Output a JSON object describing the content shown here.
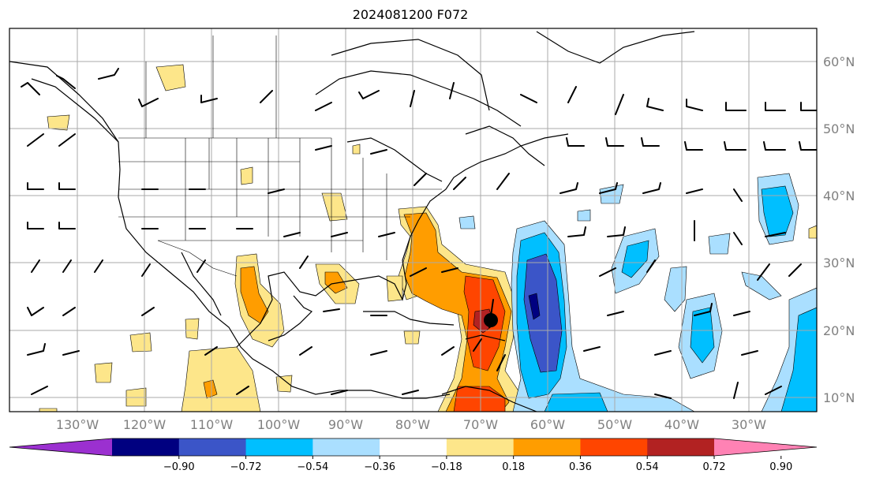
{
  "title": "2024081200 F072",
  "lat_labels": [
    "60°N",
    "50°N",
    "40°N",
    "30°N",
    "20°N",
    "10°N"
  ],
  "lon_labels": [
    "130°W",
    "120°W",
    "110°W",
    "100°W",
    "90°W",
    "80°W",
    "70°W",
    "60°W",
    "50°W",
    "40°W",
    "30°W"
  ],
  "colorbar": {
    "ticks": [
      "−0.90",
      "−0.72",
      "−0.54",
      "−0.36",
      "−0.18",
      "0.18",
      "0.36",
      "0.54",
      "0.72",
      "0.90"
    ],
    "colors": [
      "#9b30d0",
      "#000080",
      "#3b55c8",
      "#00bfff",
      "#aadfff",
      "#ffffff",
      "#fde68a",
      "#ff9d00",
      "#ff4500",
      "#b22222",
      "#ff82b4"
    ]
  },
  "colors": {
    "grid": "#aaaaaa",
    "coast": "#000000",
    "barb": "#000000"
  },
  "marker": {
    "label": "storm-center",
    "lat": 21.5,
    "lon": -69.0
  }
}
